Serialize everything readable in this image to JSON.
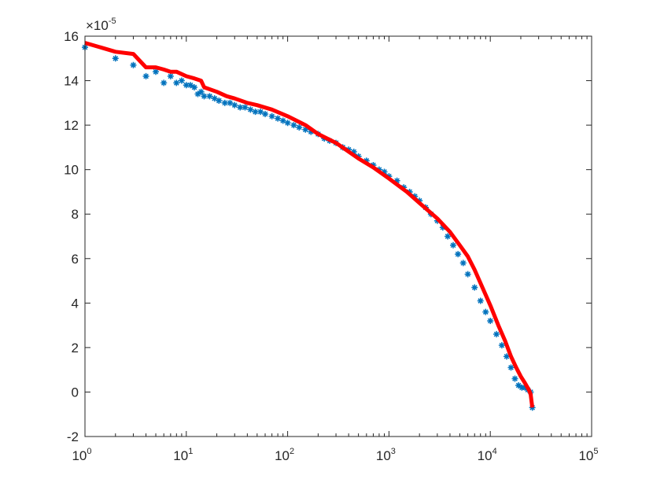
{
  "chart_data": {
    "type": "scatter",
    "x_scale": "log",
    "xlim": [
      1,
      100000
    ],
    "ylim": [
      -2,
      16
    ],
    "y_multiplier_label": "×10",
    "y_multiplier_exponent": "-5",
    "x_ticks": [
      {
        "base": "10",
        "exp": "0",
        "value": 1
      },
      {
        "base": "10",
        "exp": "1",
        "value": 10
      },
      {
        "base": "10",
        "exp": "2",
        "value": 100
      },
      {
        "base": "10",
        "exp": "3",
        "value": 1000
      },
      {
        "base": "10",
        "exp": "4",
        "value": 10000
      },
      {
        "base": "10",
        "exp": "5",
        "value": 100000
      }
    ],
    "y_ticks": [
      "16",
      "14",
      "12",
      "10",
      "8",
      "6",
      "4",
      "2",
      "0",
      "-2"
    ],
    "y_tick_values": [
      16,
      14,
      12,
      10,
      8,
      6,
      4,
      2,
      0,
      -2
    ],
    "grid": false,
    "colors": {
      "scatter": "#0072BD",
      "line": "#FF0000",
      "axes": "#262626"
    },
    "series": [
      {
        "type": "scatter",
        "marker": "asterisk",
        "x": [
          1,
          2,
          3,
          4,
          5,
          6,
          7,
          8,
          9,
          10,
          11,
          12,
          13,
          14,
          15,
          17,
          19,
          21,
          24,
          27,
          30,
          34,
          38,
          43,
          48,
          54,
          60,
          70,
          80,
          90,
          100,
          115,
          130,
          150,
          170,
          200,
          230,
          260,
          300,
          350,
          400,
          450,
          500,
          600,
          700,
          800,
          900,
          1000,
          1200,
          1400,
          1600,
          1800,
          2000,
          2300,
          2600,
          3000,
          3400,
          3800,
          4300,
          4800,
          5400,
          6000,
          7000,
          8000,
          9000,
          10000,
          11500,
          13000,
          14500,
          16000,
          17500,
          19000,
          20500,
          22000,
          23500,
          25000,
          26000
        ],
        "y": [
          15.5,
          15.0,
          14.7,
          14.2,
          14.4,
          13.9,
          14.2,
          13.9,
          14.0,
          13.8,
          13.8,
          13.7,
          13.4,
          13.5,
          13.3,
          13.3,
          13.2,
          13.1,
          13.0,
          13.0,
          12.9,
          12.8,
          12.8,
          12.7,
          12.6,
          12.6,
          12.5,
          12.4,
          12.3,
          12.2,
          12.1,
          12.0,
          11.9,
          11.8,
          11.7,
          11.6,
          11.4,
          11.3,
          11.2,
          11.0,
          10.9,
          10.8,
          10.6,
          10.4,
          10.2,
          10.0,
          9.9,
          9.7,
          9.5,
          9.2,
          9.0,
          8.8,
          8.6,
          8.3,
          8.0,
          7.7,
          7.4,
          7.0,
          6.6,
          6.2,
          5.8,
          5.3,
          4.7,
          4.1,
          3.6,
          3.2,
          2.6,
          2.1,
          1.6,
          1.1,
          0.6,
          0.3,
          0.2,
          0.2,
          0.1,
          0.0,
          -0.7
        ]
      },
      {
        "type": "line",
        "x": [
          1,
          2,
          3,
          4,
          5,
          6,
          7,
          8,
          10,
          12,
          14,
          15,
          20,
          25,
          30,
          40,
          50,
          70,
          100,
          150,
          200,
          300,
          500,
          700,
          1000,
          1500,
          2000,
          3000,
          4000,
          5000,
          6000,
          7000,
          8000,
          10000,
          12000,
          14000,
          16000,
          18000,
          20000,
          22000,
          24000,
          25000,
          26000
        ],
        "y": [
          15.7,
          15.3,
          15.2,
          14.6,
          14.6,
          14.5,
          14.4,
          14.4,
          14.2,
          14.1,
          14.0,
          13.7,
          13.5,
          13.3,
          13.2,
          13.0,
          12.9,
          12.7,
          12.4,
          12.0,
          11.6,
          11.2,
          10.5,
          10.1,
          9.6,
          9.0,
          8.5,
          7.8,
          7.2,
          6.6,
          6.1,
          5.5,
          4.9,
          3.9,
          3.0,
          2.3,
          1.6,
          1.1,
          0.7,
          0.4,
          0.1,
          -0.1,
          -0.7
        ]
      }
    ]
  }
}
